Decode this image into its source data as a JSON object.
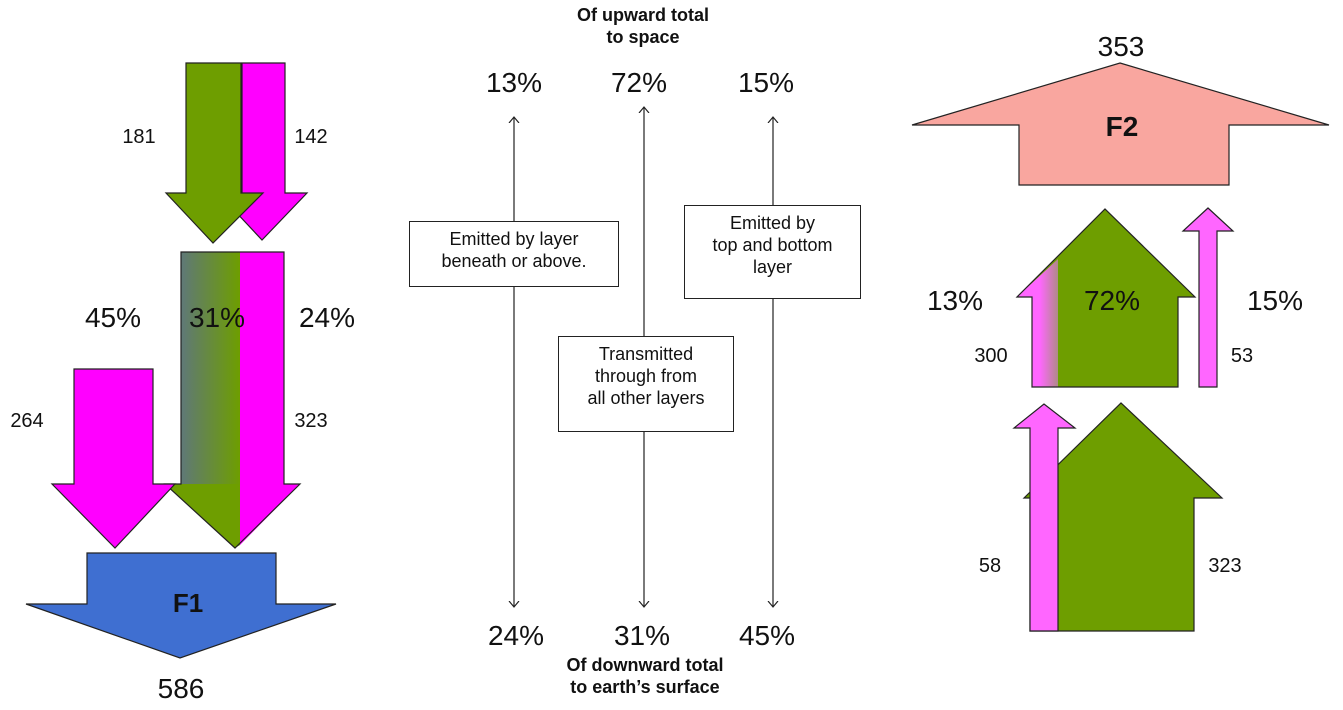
{
  "left_panel": {
    "in_green_value": "181",
    "in_pink_value": "142",
    "pct_left": "45%",
    "pct_mid": "31%",
    "pct_right": "24%",
    "down_pink_value": "264",
    "down_mixed_value": "323",
    "flux_label": "F1",
    "flux_total": "586"
  },
  "middle_panel": {
    "top_caption": "Of upward total\nto space",
    "bottom_caption": "Of downward total\nto earth’s surface",
    "top_pcts": [
      "13%",
      "72%",
      "15%"
    ],
    "bottom_pcts": [
      "24%",
      "31%",
      "45%"
    ],
    "box_left": "Emitted by layer\nbeneath or above.",
    "box_center": "Transmitted\nthrough from\nall other layers",
    "box_right": "Emitted by\ntop and bottom\nlayer"
  },
  "right_panel": {
    "flux_total": "353",
    "flux_label": "F2",
    "pct_left": "13%",
    "pct_center": "72%",
    "pct_right": "15%",
    "mid_left_value": "300",
    "mid_right_value": "53",
    "bottom_left_value": "58",
    "bottom_right_value": "323"
  },
  "colors": {
    "green": "#6e9e00",
    "magenta": "#ff00ff",
    "light_magenta": "#ff66ff",
    "blue": "#3f6fd1",
    "salmon": "#f9a69f",
    "slate": "#5f7878"
  }
}
